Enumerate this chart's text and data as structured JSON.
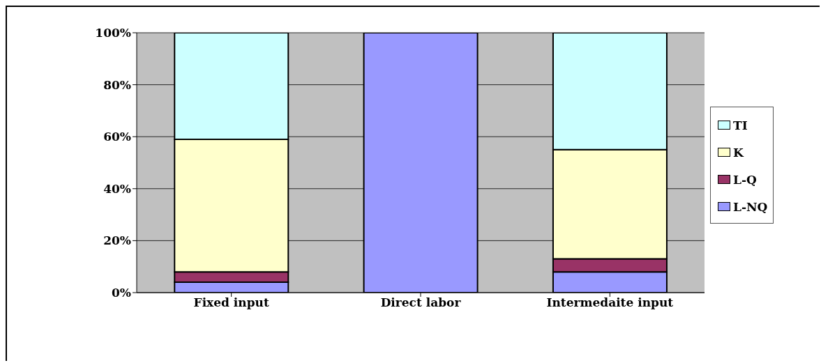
{
  "chart_data": {
    "type": "bar",
    "stacked": true,
    "categories": [
      "Fixed input",
      "Direct labor",
      "Intermedaite input"
    ],
    "series": [
      {
        "name": "L-NQ",
        "color": "#9999ff",
        "values": [
          4,
          100,
          8
        ]
      },
      {
        "name": "L-Q",
        "color": "#993366",
        "values": [
          4,
          0,
          5
        ]
      },
      {
        "name": "K",
        "color": "#ffffcc",
        "values": [
          51,
          0,
          42
        ]
      },
      {
        "name": "TI",
        "color": "#ccffff",
        "values": [
          41,
          0,
          45
        ]
      }
    ],
    "ylim": [
      0,
      100
    ],
    "yticks": [
      {
        "value": 0,
        "label": "0%"
      },
      {
        "value": 20,
        "label": "20%"
      },
      {
        "value": 40,
        "label": "40%"
      },
      {
        "value": 60,
        "label": "60%"
      },
      {
        "value": 80,
        "label": "80%"
      },
      {
        "value": 100,
        "label": "100%"
      }
    ],
    "grid": "y",
    "legend": "right"
  }
}
